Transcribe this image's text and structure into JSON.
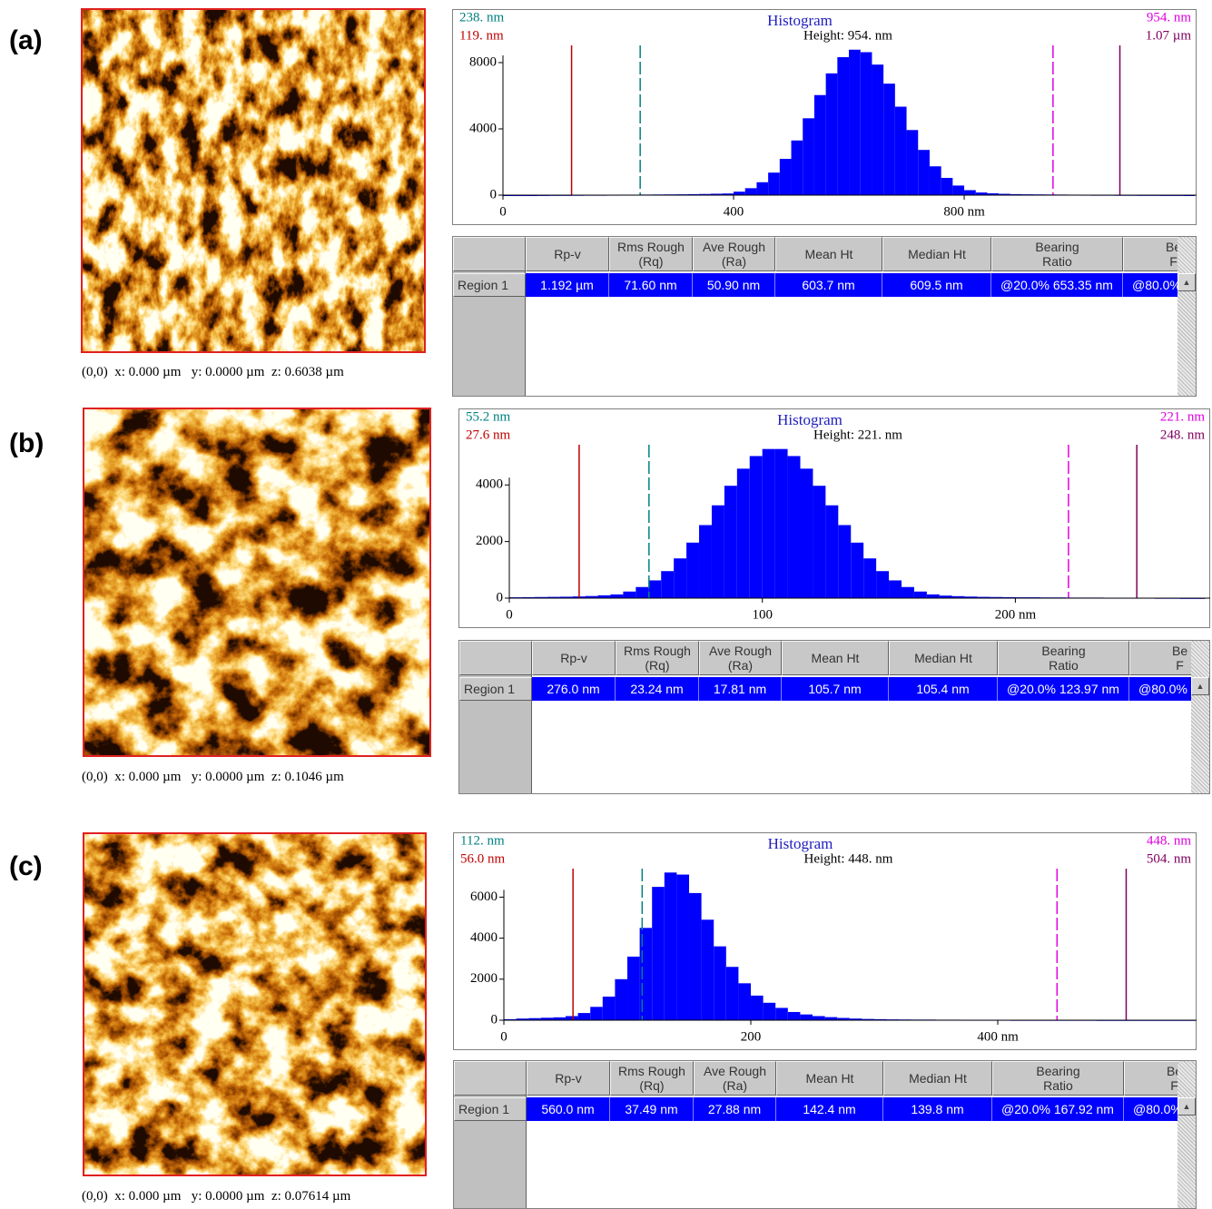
{
  "panels": [
    {
      "label": "(a)",
      "image_caption": "(0,0)  x: 0.000 µm   y: 0.0000 µm  z: 0.6038 µm",
      "table": {
        "header": [
          "Rp-v",
          "Rms Rough\n(Rq)",
          "Ave Rough\n(Ra)",
          "Mean Ht",
          "Median Ht",
          "Bearing\nRatio",
          "Be\nF"
        ],
        "rows": [
          [
            "Region 1",
            "1.192 µm",
            "71.60 nm",
            "50.90 nm",
            "603.7 nm",
            "609.5 nm",
            "@20.0% 653.35 nm",
            "@80.0%"
          ]
        ]
      }
    },
    {
      "label": "(b)",
      "image_caption": "(0,0)  x: 0.000 µm   y: 0.0000 µm  z: 0.1046 µm",
      "table": {
        "header": [
          "Rp-v",
          "Rms Rough\n(Rq)",
          "Ave Rough\n(Ra)",
          "Mean Ht",
          "Median Ht",
          "Bearing\nRatio",
          "Be\nF"
        ],
        "rows": [
          [
            "Region 1",
            "276.0 nm",
            "23.24 nm",
            "17.81 nm",
            "105.7 nm",
            "105.4 nm",
            "@20.0% 123.97 nm",
            "@80.0%"
          ]
        ]
      }
    },
    {
      "label": "(c)",
      "image_caption": "(0,0)  x: 0.000 µm   y: 0.0000 µm  z: 0.07614 µm",
      "table": {
        "header": [
          "Rp-v",
          "Rms Rough\n(Rq)",
          "Ave Rough\n(Ra)",
          "Mean Ht",
          "Median Ht",
          "Bearing\nRatio",
          "Be\nF"
        ],
        "rows": [
          [
            "Region 1",
            "560.0 nm",
            "37.49 nm",
            "27.88 nm",
            "142.4 nm",
            "139.8 nm",
            "@20.0% 167.92 nm",
            "@80.0%"
          ]
        ]
      }
    }
  ],
  "chart_data": [
    {
      "type": "histogram",
      "title": "Histogram",
      "subtitle": "Height: 954. nm",
      "color": "#0000ff",
      "bins": [
        0,
        20,
        40,
        60,
        80,
        100,
        120,
        140,
        160,
        180,
        200,
        220,
        240,
        260,
        280,
        300,
        320,
        340,
        360,
        380,
        400,
        420,
        440,
        460,
        480,
        500,
        520,
        540,
        560,
        580,
        600,
        620,
        640,
        660,
        680,
        700,
        720,
        740,
        760,
        780,
        800,
        820,
        840,
        860,
        880,
        900,
        920,
        940,
        960,
        980,
        1000,
        1020,
        1040,
        1060,
        1080,
        1100,
        1120,
        1140,
        1160,
        1180,
        1200
      ],
      "counts": [
        0,
        0,
        0,
        5,
        10,
        10,
        15,
        20,
        20,
        25,
        30,
        30,
        35,
        40,
        45,
        50,
        60,
        70,
        85,
        100,
        210,
        420,
        780,
        1360,
        2190,
        3300,
        4640,
        6040,
        7350,
        8330,
        8780,
        8630,
        7880,
        6730,
        5340,
        3930,
        2730,
        1740,
        1040,
        580,
        300,
        160,
        110,
        80,
        60,
        50,
        45,
        40,
        35,
        30,
        25,
        20,
        20,
        15,
        15,
        10,
        10,
        5,
        5,
        0
      ],
      "xlim": [
        0,
        1203
      ],
      "ylim": [
        0,
        9040
      ],
      "xticks": [
        0,
        400,
        {
          "value": 800,
          "label": "800 nm"
        }
      ],
      "yticks": [
        0,
        4000,
        8000
      ],
      "markers": [
        {
          "value": 238,
          "label": "238. nm",
          "color": "#008080",
          "dashed": true
        },
        {
          "value": 119,
          "label": "119. nm",
          "color": "#c00000",
          "dashed": false
        },
        {
          "value": 954,
          "label": "954. nm",
          "color": "#e000e0",
          "dashed": true
        },
        {
          "value": 1070,
          "label": "1.07 µm",
          "color": "#800060",
          "dashed": false
        }
      ]
    },
    {
      "type": "histogram",
      "title": "Histogram",
      "subtitle": "Height: 221. nm",
      "color": "#0000ff",
      "bins": [
        0,
        5,
        10,
        15,
        20,
        25,
        30,
        35,
        40,
        45,
        50,
        55,
        60,
        65,
        70,
        75,
        80,
        85,
        90,
        95,
        100,
        105,
        110,
        115,
        120,
        125,
        130,
        135,
        140,
        145,
        150,
        155,
        160,
        165,
        170,
        175,
        180,
        185,
        190,
        195,
        200,
        205,
        210,
        215,
        220,
        225,
        230,
        235,
        240,
        245,
        250,
        255,
        260,
        265,
        270,
        275
      ],
      "counts": [
        30,
        35,
        40,
        45,
        50,
        60,
        75,
        100,
        132,
        233,
        393,
        627,
        955,
        1404,
        1962,
        2581,
        3280,
        3970,
        4575,
        5020,
        5270,
        5270,
        5020,
        4575,
        3970,
        3280,
        2581,
        1962,
        1404,
        955,
        627,
        393,
        233,
        132,
        90,
        70,
        55,
        45,
        40,
        35,
        30,
        30,
        25,
        25,
        20,
        20,
        20,
        15,
        15,
        15,
        15,
        10,
        10,
        5,
        5
      ],
      "xlim": [
        0,
        277
      ],
      "ylim": [
        0,
        5420
      ],
      "xticks": [
        0,
        100,
        {
          "value": 200,
          "label": "200 nm"
        }
      ],
      "yticks": [
        0,
        2000,
        4000
      ],
      "markers": [
        {
          "value": 55.2,
          "label": "55.2 nm",
          "color": "#008080",
          "dashed": true
        },
        {
          "value": 27.6,
          "label": "27.6 nm",
          "color": "#c00000",
          "dashed": false
        },
        {
          "value": 221,
          "label": "221. nm",
          "color": "#e000e0",
          "dashed": true
        },
        {
          "value": 248,
          "label": "248. nm",
          "color": "#800060",
          "dashed": false
        }
      ]
    },
    {
      "type": "histogram",
      "title": "Histogram",
      "subtitle": "Height: 448. nm",
      "color": "#0000ff",
      "bins": [
        0,
        10,
        20,
        30,
        40,
        50,
        60,
        70,
        80,
        90,
        100,
        110,
        120,
        130,
        140,
        150,
        160,
        170,
        180,
        190,
        200,
        210,
        220,
        230,
        240,
        250,
        260,
        270,
        280,
        290,
        300,
        310,
        320,
        330,
        340,
        350,
        360,
        370,
        380,
        390,
        400,
        410,
        420,
        430,
        440,
        450,
        460,
        470,
        480,
        490,
        500,
        510,
        520,
        530,
        540,
        550,
        560
      ],
      "counts": [
        50,
        80,
        100,
        120,
        140,
        200,
        350,
        650,
        1150,
        2000,
        3100,
        4500,
        6500,
        7200,
        7100,
        6200,
        4900,
        3600,
        2600,
        1800,
        1200,
        850,
        600,
        400,
        280,
        200,
        150,
        110,
        80,
        60,
        50,
        40,
        35,
        30,
        30,
        25,
        25,
        20,
        20,
        20,
        20,
        15,
        15,
        15,
        15,
        15,
        15,
        15,
        10,
        10,
        10,
        10,
        10,
        10,
        10,
        10
      ],
      "xlim": [
        0,
        561
      ],
      "ylim": [
        0,
        7390
      ],
      "xticks": [
        0,
        200,
        {
          "value": 400,
          "label": "400 nm"
        }
      ],
      "yticks": [
        0,
        2000,
        4000,
        6000
      ],
      "markers": [
        {
          "value": 112,
          "label": "112. nm",
          "color": "#008080",
          "dashed": true
        },
        {
          "value": 56,
          "label": "56.0 nm",
          "color": "#c00000",
          "dashed": false
        },
        {
          "value": 448,
          "label": "448. nm",
          "color": "#e000e0",
          "dashed": true
        },
        {
          "value": 504,
          "label": "504. nm",
          "color": "#800060",
          "dashed": false
        }
      ]
    }
  ]
}
